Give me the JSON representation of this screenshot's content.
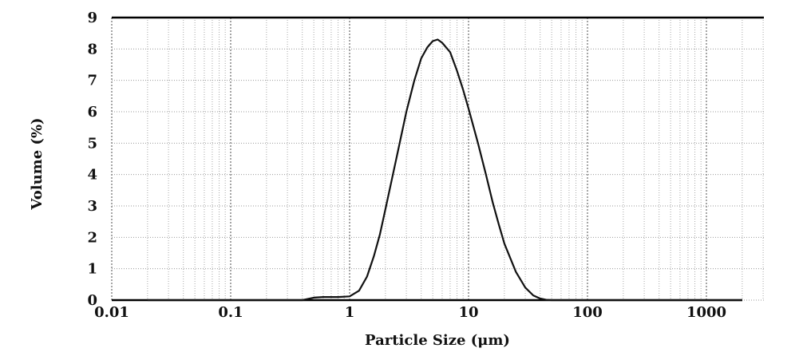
{
  "chart_data": {
    "type": "line",
    "title": "",
    "xlabel": "Particle Size (μm)",
    "ylabel": "Volume (%)",
    "x_scale": "log",
    "xlim": [
      0.01,
      3000
    ],
    "ylim": [
      0,
      9
    ],
    "grid": true,
    "x_ticks": [
      0.01,
      0.1,
      1,
      10,
      100,
      1000
    ],
    "x_tick_labels": [
      "0.01",
      "0.1",
      "1",
      "10",
      "100",
      "1000"
    ],
    "y_ticks": [
      0,
      1,
      2,
      3,
      4,
      5,
      6,
      7,
      8,
      9
    ],
    "y_tick_labels": [
      "0",
      "1",
      "2",
      "3",
      "4",
      "5",
      "6",
      "7",
      "8",
      "9"
    ],
    "series": [
      {
        "x": [
          0.02,
          0.4,
          0.5,
          0.6,
          0.8,
          1.0,
          1.2,
          1.4,
          1.6,
          1.8,
          2.0,
          2.5,
          3.0,
          3.5,
          4.0,
          4.5,
          5.0,
          5.5,
          6.0,
          7.0,
          8.0,
          9.0,
          10,
          12,
          14,
          16,
          18,
          20,
          25,
          30,
          35,
          40,
          45,
          50,
          100,
          2000
        ],
        "y": [
          0,
          0,
          0.08,
          0.1,
          0.1,
          0.12,
          0.3,
          0.75,
          1.4,
          2.1,
          2.9,
          4.6,
          6.0,
          7.0,
          7.7,
          8.05,
          8.25,
          8.3,
          8.2,
          7.9,
          7.3,
          6.7,
          6.1,
          5.0,
          4.0,
          3.1,
          2.4,
          1.8,
          0.9,
          0.4,
          0.15,
          0.05,
          0.01,
          0,
          0,
          0
        ],
        "color": "#111111"
      }
    ]
  }
}
